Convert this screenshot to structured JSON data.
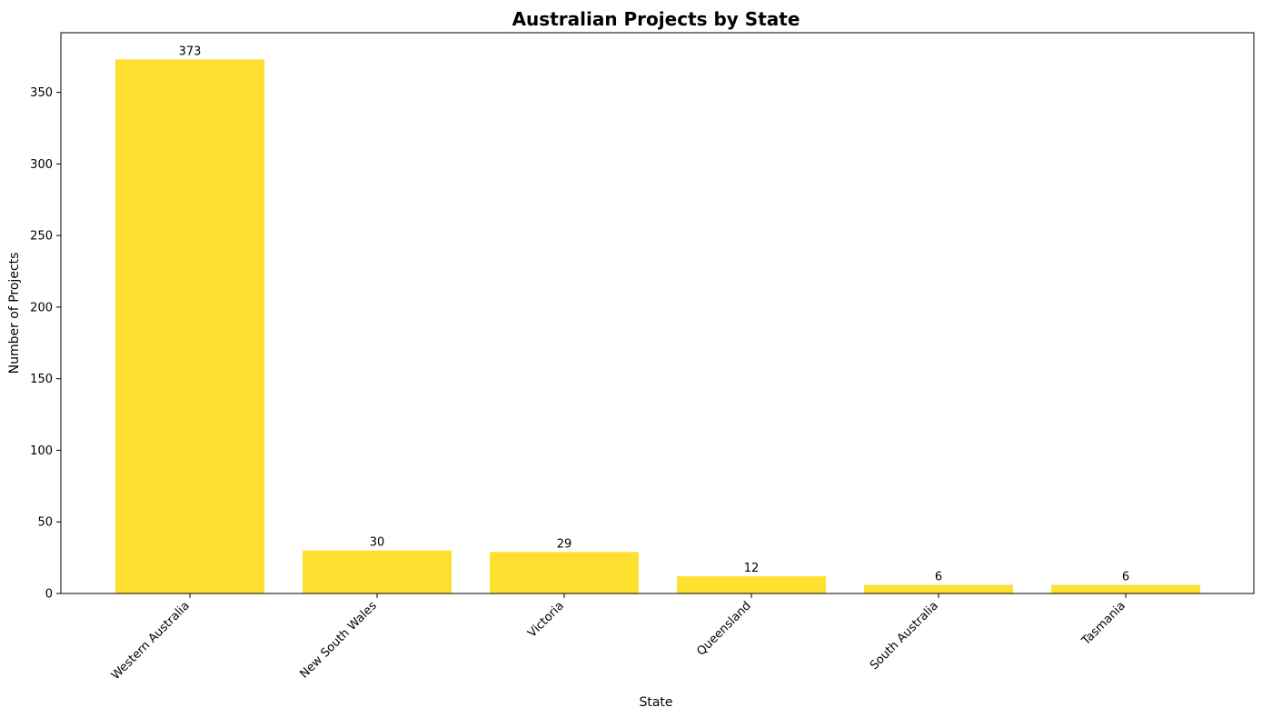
{
  "chart_data": {
    "type": "bar",
    "title": "Australian Projects by State",
    "xlabel": "State",
    "ylabel": "Number of Projects",
    "categories": [
      "Western Australia",
      "New South Wales",
      "Victoria",
      "Queensland",
      "South Australia",
      "Tasmania"
    ],
    "values": [
      373,
      30,
      29,
      12,
      6,
      6
    ],
    "data_labels": [
      "373",
      "30",
      "29",
      "12",
      "6",
      "6"
    ],
    "ylim": [
      0,
      391.65
    ],
    "yticks": [
      0,
      50,
      100,
      150,
      200,
      250,
      300,
      350
    ],
    "ytick_labels": [
      "0",
      "50",
      "100",
      "150",
      "200",
      "250",
      "300",
      "350"
    ],
    "bar_color": "#FDE030",
    "grid": false,
    "legend": "none"
  }
}
